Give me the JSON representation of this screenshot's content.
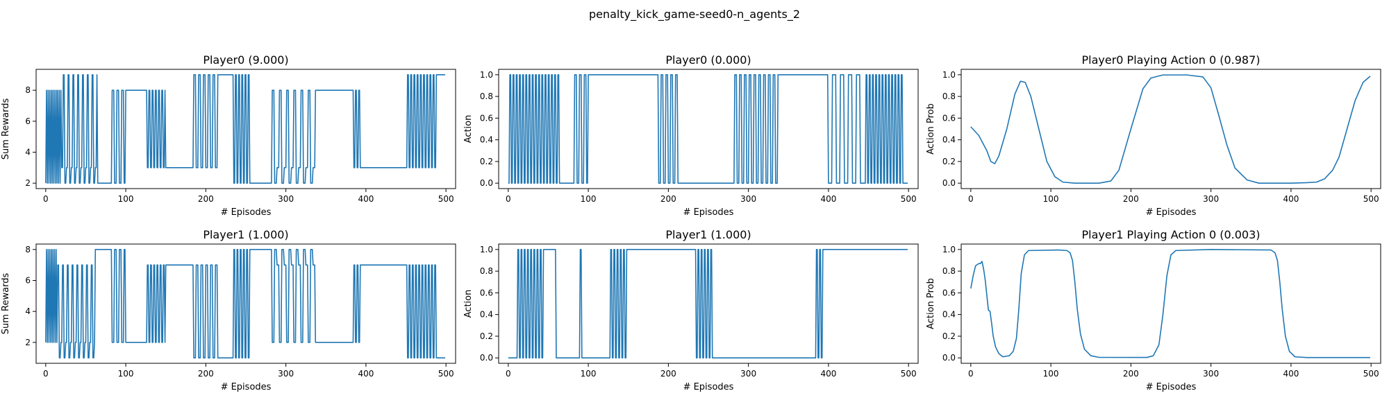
{
  "figure_title": "penalty_kick_game-seed0-n_agents_2",
  "chart_data": [
    {
      "type": "line",
      "id": "p0-rewards",
      "title": "Player0 (9.000)",
      "xlabel": "# Episodes",
      "ylabel": "Sum Rewards",
      "xlim": [
        -12,
        512
      ],
      "ylim": [
        1.65,
        9.35
      ],
      "xticks": [
        0,
        100,
        200,
        300,
        400,
        500
      ],
      "yticks": [
        2,
        4,
        6,
        8
      ],
      "x_max": 499,
      "low": 2,
      "high": 9,
      "plateau_levels": [
        8,
        3
      ],
      "segments": [
        {
          "from": 0,
          "to": 20,
          "mode": "toggle",
          "levels": [
            2,
            8
          ],
          "every": 1
        },
        {
          "from": 20,
          "to": 65,
          "mode": "toggle",
          "levels": [
            3,
            9,
            2
          ],
          "every": 2
        },
        {
          "from": 65,
          "to": 80,
          "mode": "flat",
          "level": 2
        },
        {
          "from": 80,
          "to": 100,
          "mode": "toggle",
          "levels": [
            2,
            8
          ],
          "every": 3
        },
        {
          "from": 100,
          "to": 127,
          "mode": "flat",
          "level": 8
        },
        {
          "from": 127,
          "to": 150,
          "mode": "toggle",
          "levels": [
            3,
            8
          ],
          "every": 2
        },
        {
          "from": 150,
          "to": 185,
          "mode": "flat",
          "level": 3
        },
        {
          "from": 185,
          "to": 215,
          "mode": "toggle",
          "levels": [
            9,
            3
          ],
          "every": 3
        },
        {
          "from": 215,
          "to": 235,
          "mode": "flat",
          "level": 9
        },
        {
          "from": 235,
          "to": 255,
          "mode": "toggle",
          "levels": [
            2,
            9
          ],
          "every": 2
        },
        {
          "from": 255,
          "to": 283,
          "mode": "flat",
          "level": 2
        },
        {
          "from": 283,
          "to": 340,
          "mode": "toggle",
          "levels": [
            8,
            2,
            3
          ],
          "every": 3
        },
        {
          "from": 340,
          "to": 385,
          "mode": "flat",
          "level": 8
        },
        {
          "from": 385,
          "to": 395,
          "mode": "toggle",
          "levels": [
            3,
            8
          ],
          "every": 2
        },
        {
          "from": 395,
          "to": 450,
          "mode": "flat",
          "level": 3
        },
        {
          "from": 450,
          "to": 490,
          "mode": "toggle",
          "levels": [
            3,
            9
          ],
          "every": 2
        },
        {
          "from": 490,
          "to": 500,
          "mode": "flat",
          "level": 9
        }
      ]
    },
    {
      "type": "line",
      "id": "p0-action",
      "title": "Player0 (0.000)",
      "xlabel": "# Episodes",
      "ylabel": "Action",
      "xlim": [
        -12,
        512
      ],
      "ylim": [
        -0.05,
        1.05
      ],
      "xticks": [
        0,
        100,
        200,
        300,
        400,
        500
      ],
      "yticks": [
        0.0,
        0.2,
        0.4,
        0.6,
        0.8,
        1.0
      ],
      "ytick_labels": [
        "0.0",
        "0.2",
        "0.4",
        "0.6",
        "0.8",
        "1.0"
      ],
      "x_max": 499,
      "segments": [
        {
          "from": 0,
          "to": 65,
          "mode": "toggle",
          "levels": [
            0,
            1
          ],
          "every": 2
        },
        {
          "from": 65,
          "to": 80,
          "mode": "flat",
          "level": 0
        },
        {
          "from": 80,
          "to": 100,
          "mode": "toggle",
          "levels": [
            0,
            1
          ],
          "every": 3
        },
        {
          "from": 100,
          "to": 185,
          "mode": "flat",
          "level": 1
        },
        {
          "from": 185,
          "to": 215,
          "mode": "toggle",
          "levels": [
            1,
            0
          ],
          "every": 3
        },
        {
          "from": 215,
          "to": 283,
          "mode": "flat",
          "level": 0
        },
        {
          "from": 283,
          "to": 340,
          "mode": "toggle",
          "levels": [
            1,
            0
          ],
          "every": 3
        },
        {
          "from": 340,
          "to": 400,
          "mode": "flat",
          "level": 1
        },
        {
          "from": 400,
          "to": 405,
          "mode": "flat",
          "level": 0
        },
        {
          "from": 405,
          "to": 445,
          "mode": "toggle",
          "levels": [
            1,
            0
          ],
          "every": 5
        },
        {
          "from": 445,
          "to": 495,
          "mode": "toggle",
          "levels": [
            0,
            1
          ],
          "every": 2
        },
        {
          "from": 495,
          "to": 500,
          "mode": "flat",
          "level": 0
        }
      ]
    },
    {
      "type": "line",
      "id": "p0-prob",
      "title": "Player0 Playing Action 0 (0.987)",
      "xlabel": "# Episodes",
      "ylabel": "Action Prob",
      "xlim": [
        -12,
        512
      ],
      "ylim": [
        -0.05,
        1.05
      ],
      "xticks": [
        0,
        100,
        200,
        300,
        400,
        500
      ],
      "yticks": [
        0.0,
        0.2,
        0.4,
        0.6,
        0.8,
        1.0
      ],
      "ytick_labels": [
        "0.0",
        "0.2",
        "0.4",
        "0.6",
        "0.8",
        "1.0"
      ],
      "points": [
        [
          0,
          0.52
        ],
        [
          10,
          0.44
        ],
        [
          20,
          0.3
        ],
        [
          25,
          0.2
        ],
        [
          30,
          0.18
        ],
        [
          35,
          0.25
        ],
        [
          45,
          0.5
        ],
        [
          55,
          0.82
        ],
        [
          62,
          0.94
        ],
        [
          68,
          0.93
        ],
        [
          75,
          0.8
        ],
        [
          85,
          0.5
        ],
        [
          95,
          0.2
        ],
        [
          105,
          0.06
        ],
        [
          115,
          0.01
        ],
        [
          130,
          0.0
        ],
        [
          160,
          0.0
        ],
        [
          175,
          0.02
        ],
        [
          185,
          0.12
        ],
        [
          200,
          0.5
        ],
        [
          215,
          0.87
        ],
        [
          225,
          0.97
        ],
        [
          240,
          0.998
        ],
        [
          270,
          0.998
        ],
        [
          290,
          0.98
        ],
        [
          300,
          0.88
        ],
        [
          310,
          0.62
        ],
        [
          320,
          0.35
        ],
        [
          330,
          0.14
        ],
        [
          345,
          0.03
        ],
        [
          360,
          0.0
        ],
        [
          400,
          0.0
        ],
        [
          420,
          0.005
        ],
        [
          432,
          0.01
        ],
        [
          442,
          0.04
        ],
        [
          452,
          0.12
        ],
        [
          460,
          0.24
        ],
        [
          470,
          0.5
        ],
        [
          480,
          0.76
        ],
        [
          490,
          0.93
        ],
        [
          499,
          0.987
        ]
      ]
    },
    {
      "type": "line",
      "id": "p1-rewards",
      "title": "Player1 (1.000)",
      "xlabel": "# Episodes",
      "ylabel": "Sum Rewards",
      "xlim": [
        -12,
        512
      ],
      "ylim": [
        0.65,
        8.35
      ],
      "xticks": [
        0,
        100,
        200,
        300,
        400,
        500
      ],
      "yticks": [
        2,
        4,
        6,
        8
      ],
      "x_max": 499,
      "segments": [
        {
          "from": 0,
          "to": 15,
          "mode": "toggle",
          "levels": [
            2,
            8
          ],
          "every": 1
        },
        {
          "from": 15,
          "to": 62,
          "mode": "toggle",
          "levels": [
            7,
            1,
            2
          ],
          "every": 2
        },
        {
          "from": 62,
          "to": 80,
          "mode": "flat",
          "level": 8
        },
        {
          "from": 80,
          "to": 100,
          "mode": "toggle",
          "levels": [
            8,
            2
          ],
          "every": 3
        },
        {
          "from": 100,
          "to": 127,
          "mode": "flat",
          "level": 2
        },
        {
          "from": 127,
          "to": 150,
          "mode": "toggle",
          "levels": [
            7,
            2
          ],
          "every": 2
        },
        {
          "from": 150,
          "to": 185,
          "mode": "flat",
          "level": 7
        },
        {
          "from": 185,
          "to": 215,
          "mode": "toggle",
          "levels": [
            1,
            7
          ],
          "every": 3
        },
        {
          "from": 215,
          "to": 235,
          "mode": "flat",
          "level": 1
        },
        {
          "from": 235,
          "to": 255,
          "mode": "toggle",
          "levels": [
            8,
            1
          ],
          "every": 2
        },
        {
          "from": 255,
          "to": 283,
          "mode": "flat",
          "level": 8
        },
        {
          "from": 283,
          "to": 340,
          "mode": "toggle",
          "levels": [
            2,
            8,
            7
          ],
          "every": 3
        },
        {
          "from": 340,
          "to": 385,
          "mode": "flat",
          "level": 2
        },
        {
          "from": 385,
          "to": 395,
          "mode": "toggle",
          "levels": [
            7,
            2
          ],
          "every": 2
        },
        {
          "from": 395,
          "to": 450,
          "mode": "flat",
          "level": 7
        },
        {
          "from": 450,
          "to": 490,
          "mode": "toggle",
          "levels": [
            7,
            1
          ],
          "every": 2
        },
        {
          "from": 490,
          "to": 500,
          "mode": "flat",
          "level": 1
        }
      ]
    },
    {
      "type": "line",
      "id": "p1-action",
      "title": "Player1 (1.000)",
      "xlabel": "# Episodes",
      "ylabel": "Action",
      "xlim": [
        -12,
        512
      ],
      "ylim": [
        -0.05,
        1.05
      ],
      "xticks": [
        0,
        100,
        200,
        300,
        400,
        500
      ],
      "yticks": [
        0.0,
        0.2,
        0.4,
        0.6,
        0.8,
        1.0
      ],
      "ytick_labels": [
        "0.0",
        "0.2",
        "0.4",
        "0.6",
        "0.8",
        "1.0"
      ],
      "x_max": 499,
      "segments": [
        {
          "from": 0,
          "to": 12,
          "mode": "flat",
          "level": 0
        },
        {
          "from": 12,
          "to": 45,
          "mode": "toggle",
          "levels": [
            1,
            0
          ],
          "every": 2
        },
        {
          "from": 45,
          "to": 60,
          "mode": "flat",
          "level": 1
        },
        {
          "from": 60,
          "to": 62,
          "mode": "flat",
          "level": 0
        },
        {
          "from": 62,
          "to": 90,
          "mode": "flat",
          "level": 0
        },
        {
          "from": 90,
          "to": 92,
          "mode": "flat",
          "level": 1
        },
        {
          "from": 92,
          "to": 128,
          "mode": "flat",
          "level": 0
        },
        {
          "from": 128,
          "to": 150,
          "mode": "toggle",
          "levels": [
            1,
            0
          ],
          "every": 2
        },
        {
          "from": 150,
          "to": 235,
          "mode": "flat",
          "level": 1
        },
        {
          "from": 235,
          "to": 255,
          "mode": "toggle",
          "levels": [
            0,
            1
          ],
          "every": 2
        },
        {
          "from": 255,
          "to": 385,
          "mode": "flat",
          "level": 0
        },
        {
          "from": 385,
          "to": 395,
          "mode": "toggle",
          "levels": [
            1,
            0
          ],
          "every": 2
        },
        {
          "from": 395,
          "to": 500,
          "mode": "flat",
          "level": 1
        }
      ]
    },
    {
      "type": "line",
      "id": "p1-prob",
      "title": "Player1 Playing Action 0 (0.003)",
      "xlabel": "# Episodes",
      "ylabel": "Action Prob",
      "xlim": [
        -12,
        512
      ],
      "ylim": [
        -0.05,
        1.05
      ],
      "xticks": [
        0,
        100,
        200,
        300,
        400,
        500
      ],
      "yticks": [
        0.0,
        0.2,
        0.4,
        0.6,
        0.8,
        1.0
      ],
      "ytick_labels": [
        "0.0",
        "0.2",
        "0.4",
        "0.6",
        "0.8",
        "1.0"
      ],
      "points": [
        [
          0,
          0.64
        ],
        [
          3,
          0.76
        ],
        [
          6,
          0.85
        ],
        [
          10,
          0.87
        ],
        [
          12,
          0.87
        ],
        [
          14,
          0.89
        ],
        [
          16,
          0.82
        ],
        [
          18,
          0.72
        ],
        [
          20,
          0.58
        ],
        [
          22,
          0.44
        ],
        [
          24,
          0.43
        ],
        [
          26,
          0.32
        ],
        [
          28,
          0.2
        ],
        [
          31,
          0.1
        ],
        [
          35,
          0.04
        ],
        [
          40,
          0.01
        ],
        [
          48,
          0.02
        ],
        [
          53,
          0.06
        ],
        [
          57,
          0.18
        ],
        [
          60,
          0.45
        ],
        [
          63,
          0.78
        ],
        [
          67,
          0.95
        ],
        [
          72,
          0.99
        ],
        [
          110,
          0.995
        ],
        [
          120,
          0.99
        ],
        [
          124,
          0.97
        ],
        [
          127,
          0.9
        ],
        [
          130,
          0.7
        ],
        [
          133,
          0.45
        ],
        [
          137,
          0.22
        ],
        [
          142,
          0.08
        ],
        [
          150,
          0.02
        ],
        [
          160,
          0.005
        ],
        [
          220,
          0.004
        ],
        [
          228,
          0.02
        ],
        [
          235,
          0.12
        ],
        [
          240,
          0.4
        ],
        [
          245,
          0.76
        ],
        [
          250,
          0.95
        ],
        [
          256,
          0.99
        ],
        [
          300,
          1.0
        ],
        [
          375,
          0.995
        ],
        [
          380,
          0.97
        ],
        [
          383,
          0.9
        ],
        [
          386,
          0.7
        ],
        [
          389,
          0.45
        ],
        [
          393,
          0.2
        ],
        [
          398,
          0.06
        ],
        [
          405,
          0.01
        ],
        [
          420,
          0.003
        ],
        [
          499,
          0.003
        ]
      ]
    }
  ]
}
